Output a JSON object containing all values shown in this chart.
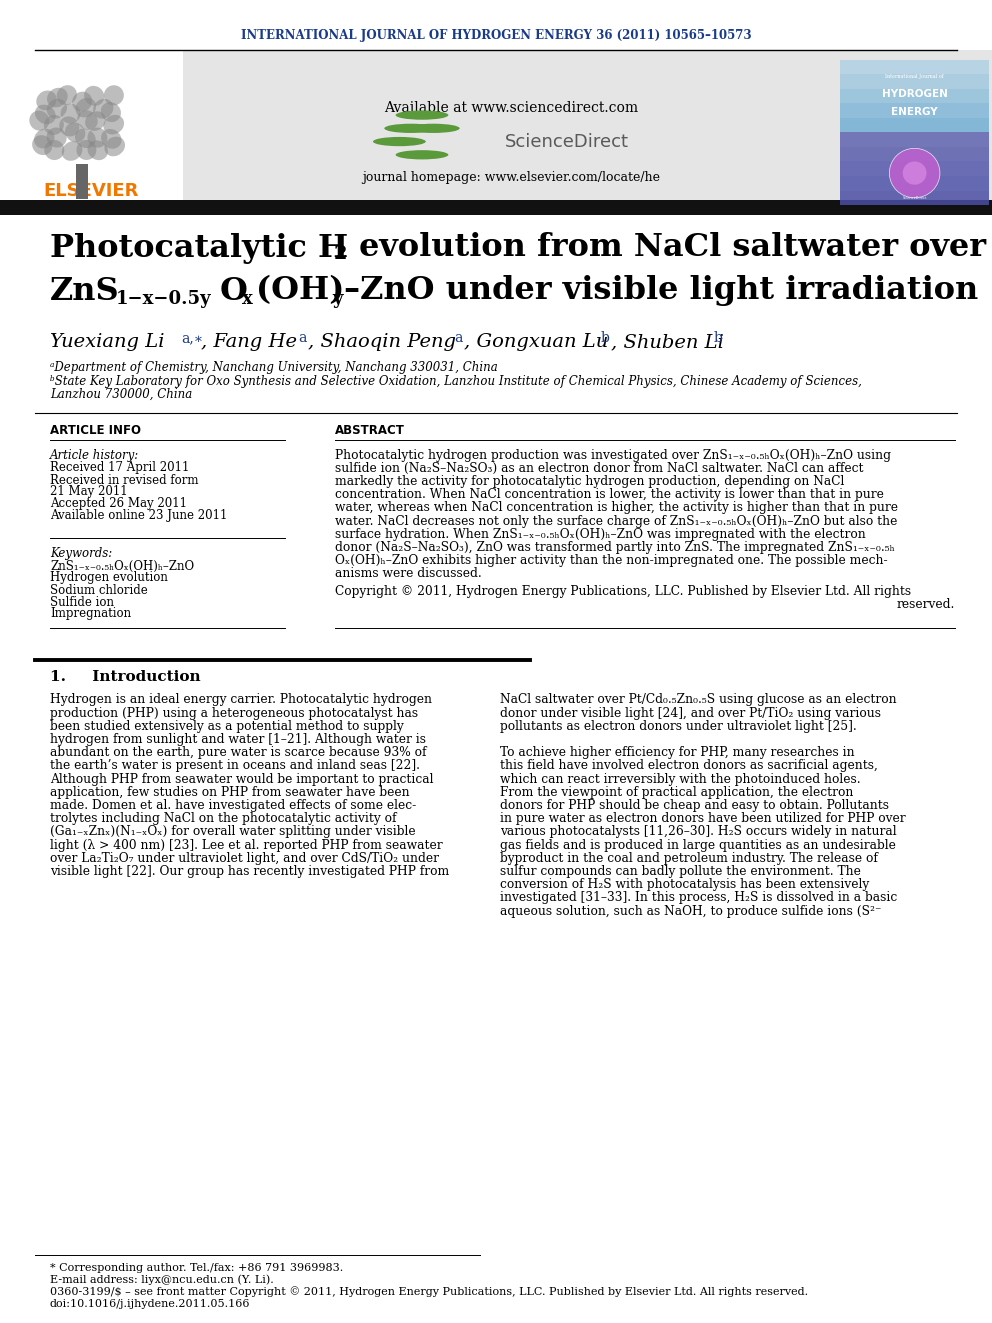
{
  "journal_header": "INTERNATIONAL JOURNAL OF HYDROGEN ENERGY 36 (2011) 10565–10573",
  "header_color": "#1a3a8a",
  "available_text": "Available at www.sciencedirect.com",
  "journal_homepage": "journal homepage: www.elsevier.com/locate/he",
  "affil_a": "ᵃDepartment of Chemistry, Nanchang University, Nanchang 330031, China",
  "affil_b1": "ᵇState Key Laboratory for Oxo Synthesis and Selective Oxidation, Lanzhou Institute of Chemical Physics, Chinese Academy of Sciences,",
  "affil_b2": "Lanzhou 730000, China",
  "article_info_header": "ARTICLE INFO",
  "abstract_header": "ABSTRACT",
  "article_history_label": "Article history:",
  "received1": "Received 17 April 2011",
  "received2": "Received in revised form",
  "received2b": "21 May 2011",
  "accepted": "Accepted 26 May 2011",
  "available_online": "Available online 23 June 2011",
  "keywords_label": "Keywords:",
  "keyword1": "ZnS₁₋ₓ₋₀.₅ₕOₓ(OH)ₕ–ZnO",
  "keyword2": "Hydrogen evolution",
  "keyword3": "Sodium chloride",
  "keyword4": "Sulfide ion",
  "keyword5": "Impregnation",
  "abstract_lines": [
    "Photocatalytic hydrogen production was investigated over ZnS₁₋ₓ₋₀.₅ₕOₓ(OH)ₕ–ZnO using",
    "sulfide ion (Na₂S–Na₂SO₃) as an electron donor from NaCl saltwater. NaCl can affect",
    "markedly the activity for photocatalytic hydrogen production, depending on NaCl",
    "concentration. When NaCl concentration is lower, the activity is lower than that in pure",
    "water, whereas when NaCl concentration is higher, the activity is higher than that in pure",
    "water. NaCl decreases not only the surface charge of ZnS₁₋ₓ₋₀.₅ₕOₓ(OH)ₕ–ZnO but also the",
    "surface hydration. When ZnS₁₋ₓ₋₀.₅ₕOₓ(OH)ₕ–ZnO was impregnated with the electron",
    "donor (Na₂S–Na₂SO₃), ZnO was transformed partly into ZnS. The impregnated ZnS₁₋ₓ₋₀.₅ₕ",
    "Oₓ(OH)ₕ–ZnO exhibits higher activity than the non-impregnated one. The possible mech-",
    "anisms were discussed."
  ],
  "copyright1": "Copyright © 2011, Hydrogen Energy Publications, LLC. Published by Elsevier Ltd. All rights",
  "copyright2": "reserved.",
  "intro_section": "1.     Introduction",
  "intro_left": [
    "Hydrogen is an ideal energy carrier. Photocatalytic hydrogen",
    "production (PHP) using a heterogeneous photocatalyst has",
    "been studied extensively as a potential method to supply",
    "hydrogen from sunlight and water [1–21]. Although water is",
    "abundant on the earth, pure water is scarce because 93% of",
    "the earth’s water is present in oceans and inland seas [22].",
    "Although PHP from seawater would be important to practical",
    "application, few studies on PHP from seawater have been",
    "made. Domen et al. have investigated effects of some elec-",
    "trolytes including NaCl on the photocatalytic activity of",
    "(Ga₁₋ₓZnₓ)(N₁₋ₓOₓ) for overall water splitting under visible",
    "light (λ > 400 nm) [23]. Lee et al. reported PHP from seawater",
    "over La₂Ti₂O₇ under ultraviolet light, and over CdS/TiO₂ under",
    "visible light [22]. Our group has recently investigated PHP from"
  ],
  "intro_right": [
    "NaCl saltwater over Pt/Cd₀.₅Zn₀.₅S using glucose as an electron",
    "donor under visible light [24], and over Pt/TiO₂ using various",
    "pollutants as electron donors under ultraviolet light [25].",
    "",
    "To achieve higher efficiency for PHP, many researches in",
    "this field have involved electron donors as sacrificial agents,",
    "which can react irreversibly with the photoinduced holes.",
    "From the viewpoint of practical application, the electron",
    "donors for PHP should be cheap and easy to obtain. Pollutants",
    "in pure water as electron donors have been utilized for PHP over",
    "various photocatalysts [11,26–30]. H₂S occurs widely in natural",
    "gas fields and is produced in large quantities as an undesirable",
    "byproduct in the coal and petroleum industry. The release of",
    "sulfur compounds can badly pollute the environment. The",
    "conversion of H₂S with photocatalysis has been extensively",
    "investigated [31–33]. In this process, H₂S is dissolved in a basic",
    "aqueous solution, such as NaOH, to produce sulfide ions (S²⁻"
  ],
  "footnote1": "* Corresponding author. Tel./fax: +86 791 3969983.",
  "footnote2": "E-mail address: liyx@ncu.edu.cn (Y. Li).",
  "footnote3": "0360-3199/$ – see front matter Copyright © 2011, Hydrogen Energy Publications, LLC. Published by Elsevier Ltd. All rights reserved.",
  "footnote4": "doi:10.1016/j.ijhydene.2011.05.166",
  "bg_color": "#ffffff",
  "black_bar_color": "#111111",
  "elsevier_color": "#f07800"
}
